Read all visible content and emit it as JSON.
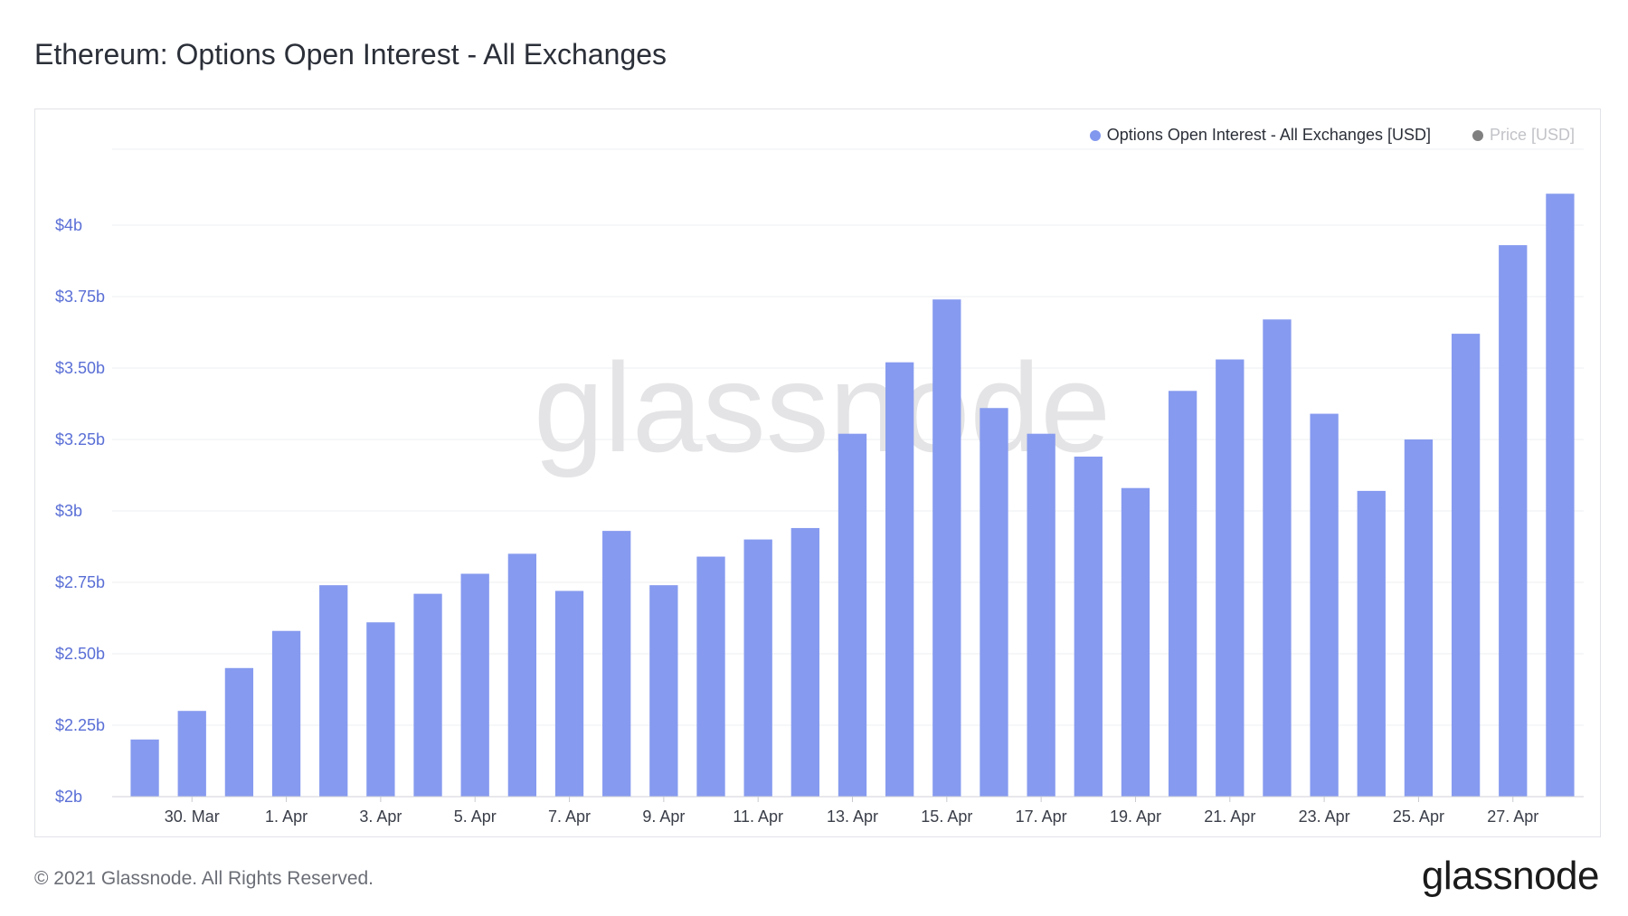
{
  "title": "Ethereum: Options Open Interest - All Exchanges",
  "footer": {
    "copyright": "© 2021 Glassnode. All Rights Reserved.",
    "logo": "glassnode"
  },
  "watermark": "glassnode",
  "colors": {
    "bar": "#8297ee",
    "price": "#808080",
    "axis_label": "#5a6fd6",
    "grid": "#eeeff2"
  },
  "chart_data": {
    "type": "bar",
    "title": "Ethereum: Options Open Interest - All Exchanges",
    "xlabel": "",
    "ylabel": "",
    "ylim": [
      2.0,
      4.2
    ],
    "y_ticks": [
      2.0,
      2.25,
      2.5,
      2.75,
      3.0,
      3.25,
      3.5,
      3.75,
      4.0
    ],
    "y_tick_labels": [
      "$2b",
      "$2.25b",
      "$2.50b",
      "$2.75b",
      "$3b",
      "$3.25b",
      "$3.50b",
      "$3.75b",
      "$4b"
    ],
    "grid": true,
    "legend_position": "top-right",
    "legend": [
      {
        "name": "Options Open Interest - All Exchanges [USD]",
        "color": "#8297ee",
        "active": true
      },
      {
        "name": "Price [USD]",
        "color": "#808080",
        "active": false
      }
    ],
    "x_tick_labels": [
      {
        "index": 1,
        "label": "30. Mar"
      },
      {
        "index": 3,
        "label": "1. Apr"
      },
      {
        "index": 5,
        "label": "3. Apr"
      },
      {
        "index": 7,
        "label": "5. Apr"
      },
      {
        "index": 9,
        "label": "7. Apr"
      },
      {
        "index": 11,
        "label": "9. Apr"
      },
      {
        "index": 13,
        "label": "11. Apr"
      },
      {
        "index": 15,
        "label": "13. Apr"
      },
      {
        "index": 17,
        "label": "15. Apr"
      },
      {
        "index": 19,
        "label": "17. Apr"
      },
      {
        "index": 21,
        "label": "19. Apr"
      },
      {
        "index": 23,
        "label": "21. Apr"
      },
      {
        "index": 25,
        "label": "23. Apr"
      },
      {
        "index": 27,
        "label": "25. Apr"
      },
      {
        "index": 29,
        "label": "27. Apr"
      }
    ],
    "series": [
      {
        "name": "Options Open Interest - All Exchanges [USD]",
        "x": [
          "2021-03-29",
          "2021-03-30",
          "2021-03-31",
          "2021-04-01",
          "2021-04-02",
          "2021-04-03",
          "2021-04-04",
          "2021-04-05",
          "2021-04-06",
          "2021-04-07",
          "2021-04-08",
          "2021-04-09",
          "2021-04-10",
          "2021-04-11",
          "2021-04-12",
          "2021-04-13",
          "2021-04-14",
          "2021-04-15",
          "2021-04-16",
          "2021-04-17",
          "2021-04-18",
          "2021-04-19",
          "2021-04-20",
          "2021-04-21",
          "2021-04-22",
          "2021-04-23",
          "2021-04-24",
          "2021-04-25",
          "2021-04-26",
          "2021-04-27",
          "2021-04-28"
        ],
        "values": [
          2.2,
          2.3,
          2.45,
          2.58,
          2.74,
          2.61,
          2.71,
          2.78,
          2.85,
          2.72,
          2.93,
          2.74,
          2.84,
          2.9,
          2.94,
          3.27,
          3.52,
          3.74,
          3.36,
          3.27,
          3.19,
          3.08,
          3.42,
          3.53,
          3.67,
          3.34,
          3.07,
          3.25,
          3.62,
          3.93,
          4.11
        ]
      }
    ]
  }
}
